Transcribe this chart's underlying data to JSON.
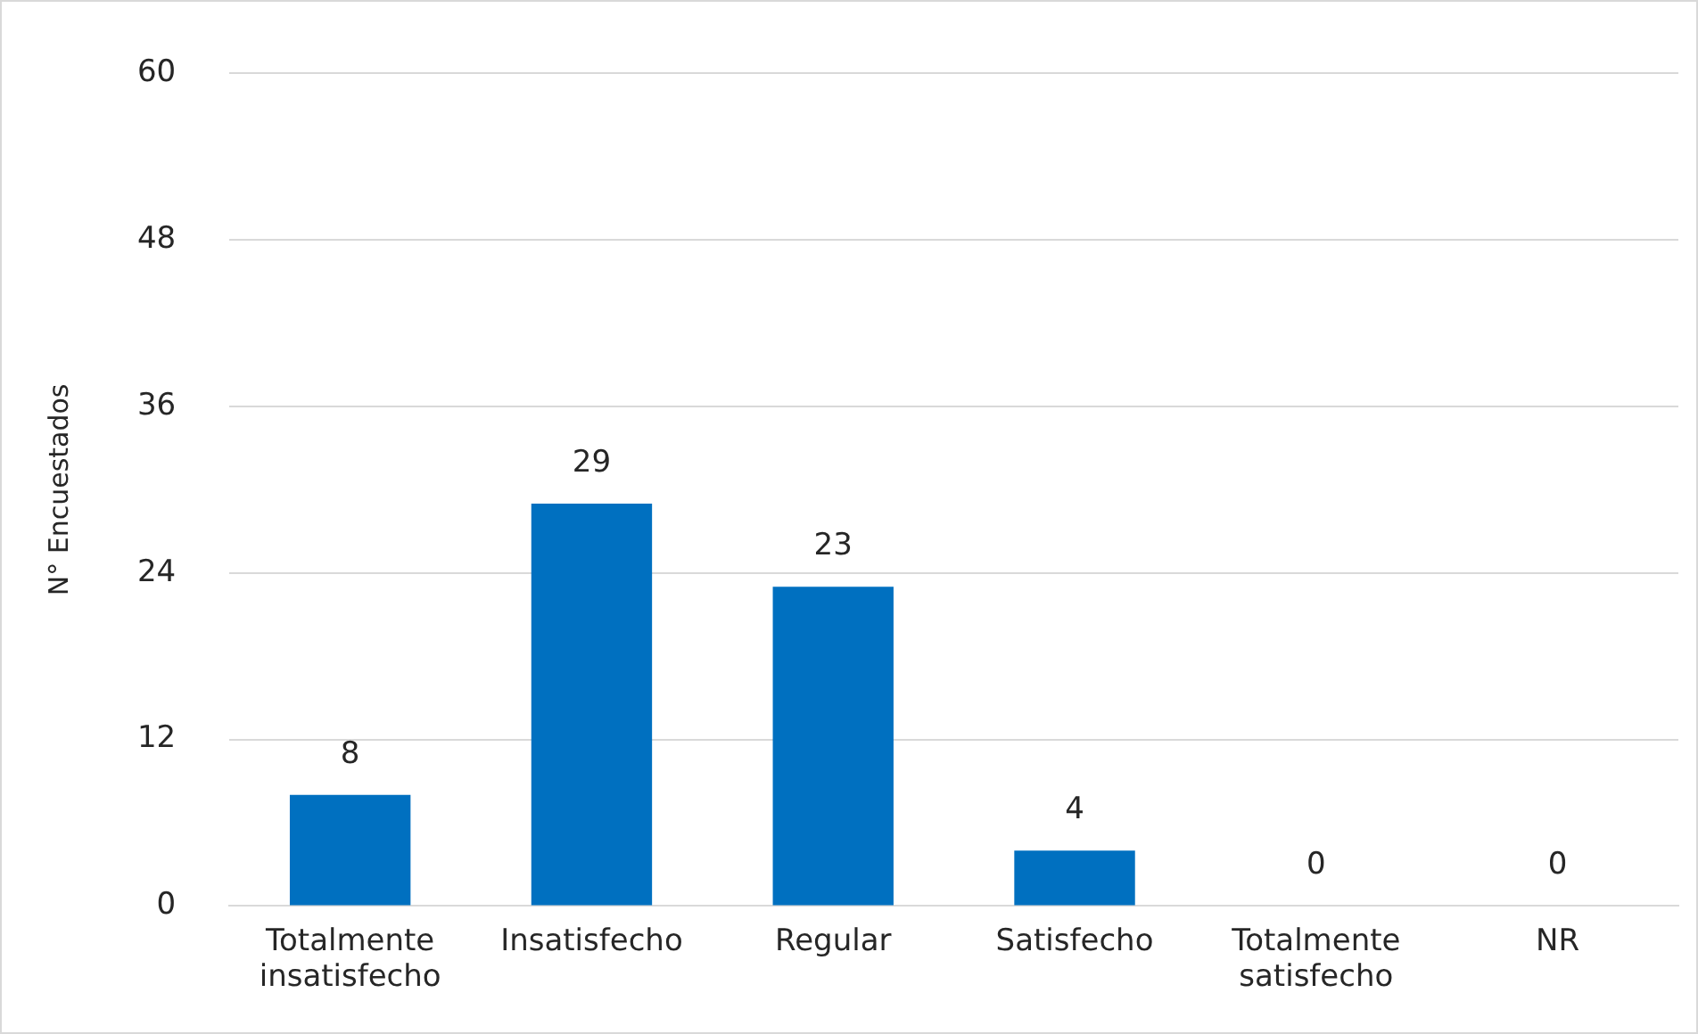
{
  "chart_data": {
    "type": "bar",
    "categories": [
      "Totalmente insatisfecho",
      "Insatisfecho",
      "Regular",
      "Satisfecho",
      "Totalmente satisfecho",
      "NR"
    ],
    "values": [
      8,
      29,
      23,
      4,
      0,
      0
    ],
    "color": "#0070c0",
    "ylabel": "N° Encuestados",
    "ylim": [
      0,
      60
    ],
    "yticks": [
      0,
      12,
      24,
      36,
      48,
      60
    ],
    "grid": "y",
    "data_labels": true
  }
}
